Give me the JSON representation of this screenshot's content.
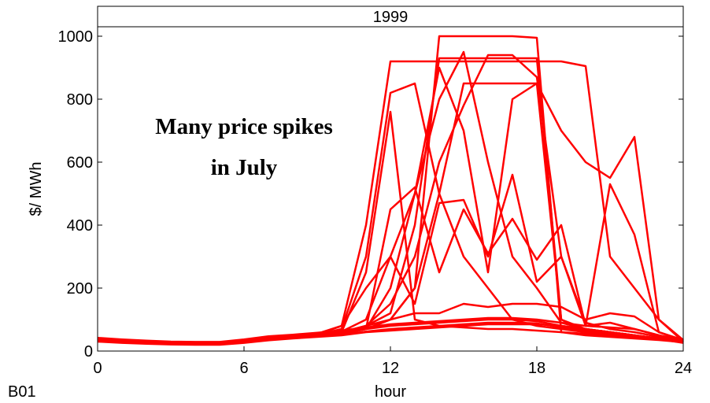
{
  "chart_data": {
    "type": "line",
    "title": "1999",
    "annotations": [
      "Many price spikes",
      "in July"
    ],
    "panel_label": "B01",
    "x_label": "hour",
    "y_label": "$/ MWh",
    "color": "#ff0000",
    "x": [
      0,
      1,
      2,
      3,
      4,
      5,
      6,
      7,
      8,
      9,
      10,
      11,
      12,
      13,
      14,
      15,
      16,
      17,
      18,
      19,
      20,
      21,
      22,
      23,
      24
    ],
    "xlim": [
      0,
      24
    ],
    "xticks": [
      0,
      6,
      12,
      18,
      24
    ],
    "ylim": [
      0,
      1030
    ],
    "yticks": [
      0,
      200,
      400,
      600,
      800,
      1000
    ],
    "grid": false,
    "series": [
      {
        "values": [
          40,
          35,
          30,
          28,
          27,
          27,
          35,
          45,
          50,
          55,
          60,
          70,
          80,
          85,
          90,
          95,
          100,
          100,
          95,
          80,
          70,
          60,
          50,
          40,
          30
        ]
      },
      {
        "values": [
          38,
          33,
          28,
          26,
          25,
          25,
          33,
          42,
          48,
          52,
          80,
          400,
          920,
          920,
          920,
          920,
          920,
          920,
          920,
          920,
          905,
          300,
          200,
          100,
          35
        ]
      },
      {
        "values": [
          35,
          30,
          27,
          25,
          24,
          24,
          30,
          40,
          45,
          50,
          60,
          70,
          100,
          200,
          1000,
          1000,
          1000,
          1000,
          995,
          60,
          50,
          45,
          40,
          35,
          28
        ]
      },
      {
        "values": [
          36,
          32,
          28,
          26,
          25,
          25,
          32,
          41,
          46,
          52,
          70,
          300,
          820,
          850,
          500,
          300,
          200,
          100,
          80,
          70,
          60,
          50,
          45,
          38,
          30
        ]
      },
      {
        "values": [
          34,
          30,
          26,
          24,
          23,
          23,
          30,
          38,
          44,
          50,
          60,
          80,
          120,
          400,
          930,
          930,
          930,
          930,
          930,
          100,
          60,
          50,
          45,
          38,
          28
        ]
      },
      {
        "values": [
          37,
          33,
          29,
          27,
          26,
          26,
          33,
          42,
          47,
          53,
          60,
          250,
          760,
          100,
          80,
          75,
          70,
          70,
          65,
          60,
          55,
          50,
          45,
          40,
          32
        ]
      },
      {
        "values": [
          33,
          29,
          26,
          24,
          23,
          23,
          29,
          37,
          43,
          48,
          55,
          70,
          200,
          500,
          800,
          950,
          600,
          300,
          200,
          90,
          70,
          60,
          50,
          40,
          30
        ]
      },
      {
        "values": [
          36,
          31,
          27,
          25,
          24,
          24,
          31,
          40,
          46,
          51,
          58,
          80,
          150,
          300,
          600,
          780,
          940,
          940,
          870,
          300,
          90,
          70,
          60,
          45,
          33
        ]
      },
      {
        "values": [
          35,
          31,
          27,
          25,
          24,
          24,
          31,
          39,
          45,
          50,
          55,
          70,
          100,
          200,
          500,
          850,
          850,
          850,
          850,
          700,
          600,
          550,
          680,
          100,
          30
        ]
      },
      {
        "values": [
          38,
          34,
          30,
          28,
          27,
          27,
          34,
          43,
          48,
          54,
          62,
          100,
          300,
          150,
          470,
          480,
          300,
          560,
          220,
          300,
          80,
          530,
          370,
          60,
          35
        ]
      },
      {
        "values": [
          34,
          30,
          27,
          25,
          24,
          24,
          30,
          38,
          44,
          49,
          55,
          70,
          450,
          520,
          250,
          450,
          310,
          420,
          290,
          400,
          80,
          90,
          70,
          50,
          30
        ]
      },
      {
        "values": [
          36,
          32,
          28,
          26,
          25,
          25,
          32,
          41,
          46,
          52,
          60,
          80,
          100,
          120,
          120,
          150,
          140,
          150,
          150,
          140,
          100,
          120,
          110,
          60,
          32
        ]
      },
      {
        "values": [
          30,
          26,
          23,
          21,
          20,
          20,
          26,
          34,
          40,
          45,
          50,
          60,
          65,
          70,
          75,
          80,
          85,
          85,
          85,
          80,
          70,
          60,
          50,
          40,
          28
        ]
      },
      {
        "values": [
          42,
          37,
          33,
          30,
          29,
          29,
          37,
          47,
          52,
          58,
          65,
          75,
          85,
          90,
          95,
          100,
          105,
          105,
          100,
          90,
          80,
          75,
          70,
          50,
          35
        ]
      },
      {
        "values": [
          32,
          28,
          25,
          23,
          22,
          22,
          28,
          36,
          42,
          47,
          52,
          62,
          70,
          75,
          80,
          85,
          90,
          90,
          88,
          75,
          65,
          55,
          45,
          38,
          26
        ]
      },
      {
        "values": [
          38,
          34,
          30,
          27,
          26,
          26,
          34,
          44,
          50,
          55,
          80,
          200,
          300,
          500,
          900,
          700,
          250,
          800,
          850,
          100,
          70,
          60,
          50,
          40,
          30
        ]
      }
    ]
  }
}
